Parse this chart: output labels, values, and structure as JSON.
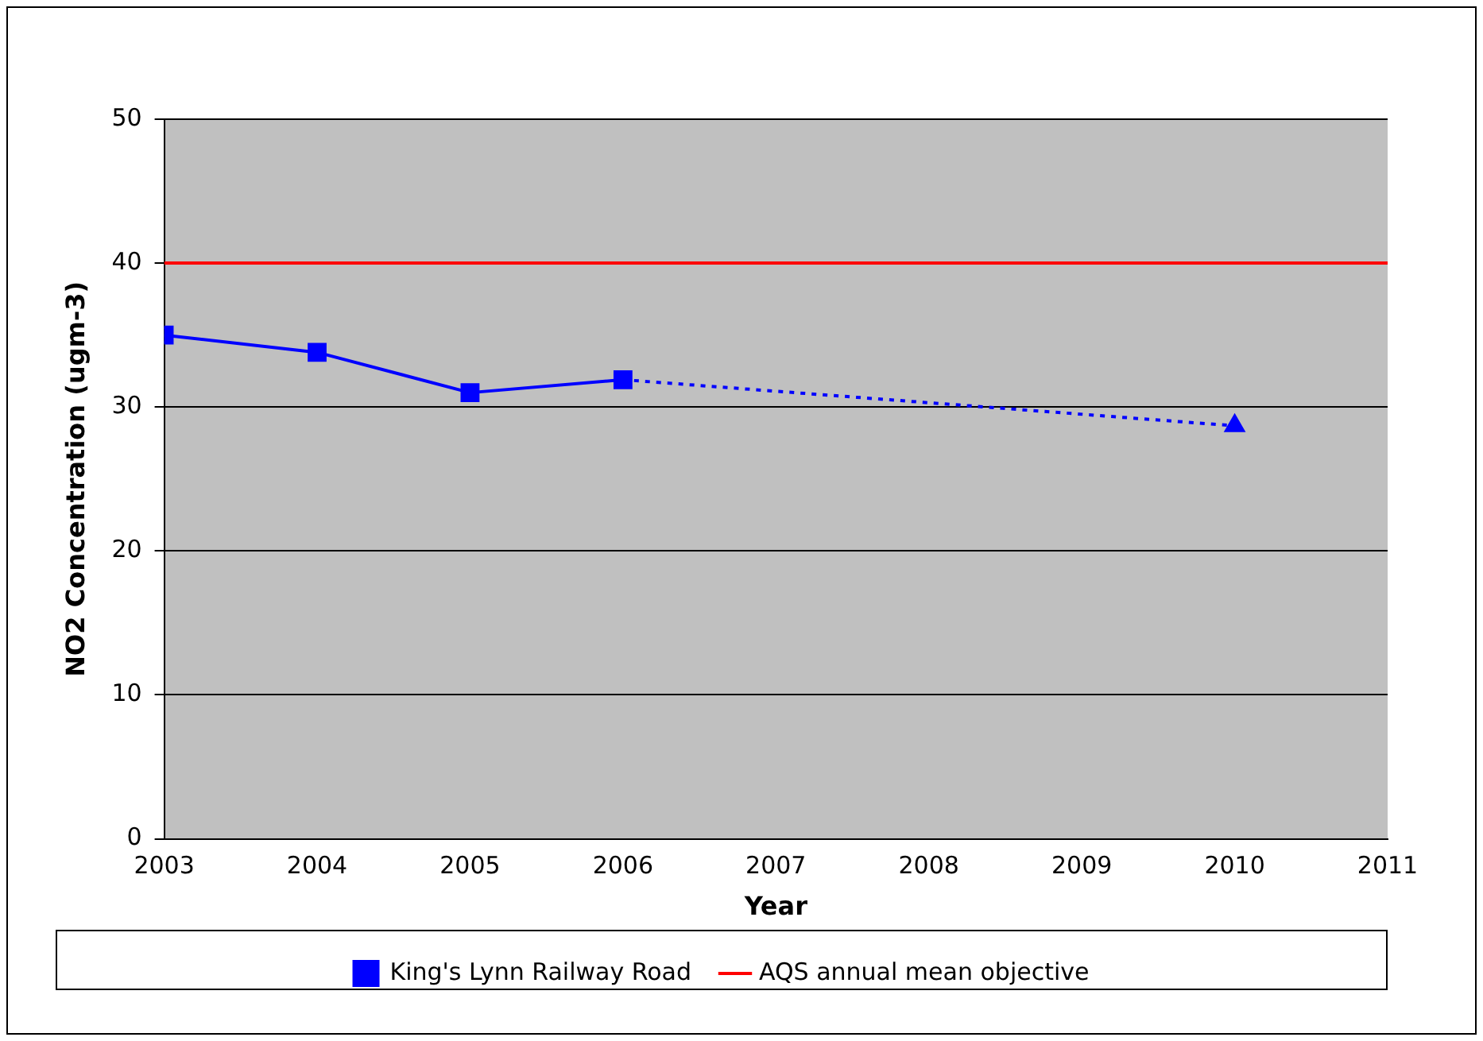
{
  "chart_data": {
    "type": "line",
    "xlabel": "Year",
    "ylabel": "NO2 Concentration (ugm-3)",
    "xlim": [
      2003,
      2011
    ],
    "xticks": [
      2003,
      2004,
      2005,
      2006,
      2007,
      2008,
      2009,
      2010,
      2011
    ],
    "ylim": [
      0,
      50
    ],
    "yticks": [
      0,
      10,
      20,
      30,
      40,
      50
    ],
    "grid": "y",
    "legend": "bottom",
    "series": [
      {
        "name": "King's Lynn Railway Road",
        "color": "#0000ff",
        "x": [
          2003,
          2004,
          2005,
          2006
        ],
        "values": [
          35,
          33.8,
          31,
          31.9
        ],
        "marker": "square",
        "line_style": "solid"
      },
      {
        "color": "#0000ff",
        "x": [
          2006,
          2010
        ],
        "values": [
          31.9,
          28.7
        ],
        "marker": "triangle",
        "line_style": "dotted"
      }
    ],
    "ref_lines": [
      {
        "axis": "y",
        "value": 40,
        "label": "AQS annual mean objective",
        "color": "#ff0000",
        "line_style": "solid"
      }
    ]
  }
}
